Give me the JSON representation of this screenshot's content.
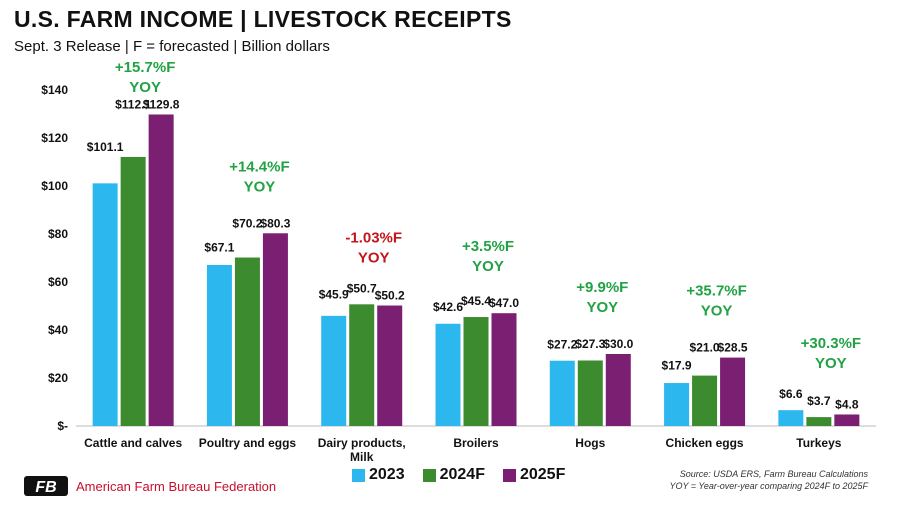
{
  "header": {
    "title": "U.S. FARM INCOME | LIVESTOCK RECEIPTS",
    "subtitle": "Sept. 3 Release | F = forecasted | Billion dollars"
  },
  "chart_data": {
    "type": "bar",
    "categories": [
      "Cattle and calves",
      "Poultry and eggs",
      "Dairy products, Milk",
      "Broilers",
      "Hogs",
      "Chicken eggs",
      "Turkeys"
    ],
    "series": [
      {
        "name": "2023",
        "color": "#2db7ef",
        "values": [
          101.1,
          67.1,
          45.9,
          42.6,
          27.2,
          17.9,
          6.6
        ],
        "labels": [
          "$101.1",
          "$67.1",
          "$45.9",
          "$42.6",
          "$27.2",
          "$17.9",
          "$6.6"
        ]
      },
      {
        "name": "2024F",
        "color": "#3d8b2f",
        "values": [
          112.1,
          70.2,
          50.7,
          45.4,
          27.3,
          21.0,
          3.7
        ],
        "labels": [
          "$112.1",
          "$70.2",
          "$50.7",
          "$45.4",
          "$27.3",
          "$21.0",
          "$3.7"
        ]
      },
      {
        "name": "2025F",
        "color": "#7b1f72",
        "values": [
          129.8,
          80.3,
          50.2,
          47.0,
          30.0,
          28.5,
          4.8
        ],
        "labels": [
          "$129.8",
          "$80.3",
          "$50.2",
          "$47.0",
          "$30.0",
          "$28.5",
          "$4.8"
        ]
      }
    ],
    "yoy_annotations": [
      {
        "text": "+15.7%F",
        "sub": "YOY",
        "color": "#22a244"
      },
      {
        "text": "+14.4%F",
        "sub": "YOY",
        "color": "#22a244"
      },
      {
        "text": "-1.03%F",
        "sub": "YOY",
        "color": "#c0161c"
      },
      {
        "text": "+3.5%F",
        "sub": "YOY",
        "color": "#22a244"
      },
      {
        "text": "+9.9%F",
        "sub": "YOY",
        "color": "#22a244"
      },
      {
        "text": "+35.7%F",
        "sub": "YOY",
        "color": "#22a244"
      },
      {
        "text": "+30.3%F",
        "sub": "YOY",
        "color": "#22a244"
      }
    ],
    "yticks": [
      0,
      20,
      40,
      60,
      80,
      100,
      120,
      140
    ],
    "ytick_labels": [
      "$-",
      "$20",
      "$40",
      "$60",
      "$80",
      "$100",
      "$120",
      "$140"
    ],
    "ylim": [
      0,
      140
    ],
    "grid": false,
    "legend_position": "bottom"
  },
  "footer": {
    "source_line1": "Source: USDA ERS, Farm Bureau Calculations",
    "source_line2": "YOY = Year-over-year comparing 2024F to 2025F",
    "logo_text": "American Farm Bureau Federation",
    "logo_mark": "FB",
    "logo_icon": "afbf-logo-icon"
  }
}
